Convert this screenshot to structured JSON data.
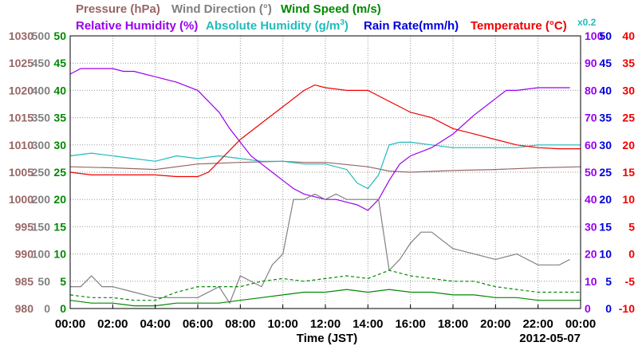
{
  "chart_data": {
    "type": "line",
    "date": "2012-05-07",
    "xlabel": "Time (JST)",
    "x_ticks": [
      "00:00",
      "02:00",
      "04:00",
      "06:00",
      "08:00",
      "10:00",
      "12:00",
      "14:00",
      "16:00",
      "18:00",
      "20:00",
      "22:00",
      "00:00"
    ],
    "xlim_hours": [
      0,
      24
    ],
    "grid": true,
    "legend_placement": "top",
    "rain_scale_note": "x0.2",
    "axes": {
      "pressure": {
        "label": "Pressure (hPa)",
        "ticks": [
          "980",
          "985",
          "990",
          "995",
          "1000",
          "1005",
          "1010",
          "1015",
          "1020",
          "1025",
          "1030"
        ],
        "range": [
          980,
          1030
        ],
        "color": "#996666"
      },
      "wind_direction": {
        "label": "Wind Direction (°)",
        "ticks": [
          "0",
          "50",
          "100",
          "150",
          "200",
          "250",
          "300",
          "350",
          "400",
          "450",
          "500"
        ],
        "range": [
          0,
          500
        ],
        "color": "#808080"
      },
      "wind_speed": {
        "label": "Wind Speed (m/s)",
        "ticks": [
          "0",
          "5",
          "10",
          "15",
          "20",
          "25",
          "30",
          "35",
          "40",
          "45",
          "50"
        ],
        "range": [
          0,
          50
        ],
        "color": "#008800"
      },
      "relative_humidity": {
        "label": "Relative Humidity (%)",
        "ticks": [
          "0",
          "10",
          "20",
          "30",
          "40",
          "50",
          "60",
          "70",
          "80",
          "90",
          "100"
        ],
        "range": [
          0,
          100
        ],
        "color": "#9900ee"
      },
      "rain_rate": {
        "label": "Rain Rate(mm/h)",
        "ticks": [
          "0",
          "5",
          "10",
          "15",
          "20",
          "25",
          "30",
          "35",
          "40",
          "45",
          "50"
        ],
        "range": [
          0,
          50
        ],
        "color": "#0000dd"
      },
      "temperature": {
        "label": "Temperature (°C)",
        "ticks": [
          "-10",
          "-5",
          "0",
          "5",
          "10",
          "15",
          "20",
          "25",
          "30",
          "35",
          "40"
        ],
        "range": [
          -10,
          40
        ],
        "color": "#ee0000"
      },
      "absolute_humidity": {
        "label": "Absolute Humidity (g/m",
        "label_sup": "3",
        "label_end": ")",
        "color": "#22bbbb"
      }
    },
    "series": [
      {
        "name": "Pressure (hPa)",
        "axis": "pressure",
        "color": "#996666",
        "x": [
          0,
          2,
          4,
          6,
          8,
          10,
          11,
          12,
          14,
          15,
          16,
          18,
          20,
          22,
          24
        ],
        "y": [
          1006,
          1005.8,
          1005.5,
          1006.5,
          1006.8,
          1007,
          1006.8,
          1006.8,
          1006,
          1005.2,
          1005,
          1005.3,
          1005.5,
          1005.8,
          1006
        ]
      },
      {
        "name": "Absolute Humidity",
        "axis": "relative_humidity",
        "color": "#22bbbb",
        "x": [
          0,
          1,
          2,
          3,
          4,
          5,
          6,
          7,
          8,
          9,
          10,
          11,
          12,
          13,
          13.5,
          14,
          14.5,
          15,
          15.5,
          16,
          17,
          18,
          19,
          20,
          21,
          22,
          23,
          24
        ],
        "y": [
          56,
          57,
          56,
          55,
          54,
          56,
          55,
          56,
          55,
          54,
          54,
          53,
          53,
          51,
          46,
          44,
          49,
          60,
          61,
          61,
          60,
          59,
          59,
          59,
          59,
          60,
          60,
          60
        ]
      },
      {
        "name": "Relative Humidity (%)",
        "axis": "relative_humidity",
        "color": "#9900ee",
        "x": [
          0,
          0.5,
          1,
          2,
          2.5,
          3,
          4,
          5,
          6,
          6.5,
          7,
          7.5,
          8,
          8.5,
          9,
          9.5,
          10,
          10.5,
          11,
          11.5,
          12,
          12.5,
          13,
          13.5,
          14,
          14.5,
          15,
          15.5,
          16,
          17,
          18,
          19,
          20,
          20.5,
          21,
          22,
          23,
          23.5
        ],
        "y": [
          86,
          88,
          88,
          88,
          87,
          87,
          85,
          83,
          80,
          76,
          72,
          66,
          61,
          56,
          53,
          50,
          47,
          44,
          42,
          41,
          40,
          40,
          39,
          38,
          36,
          40,
          47,
          53,
          56,
          59,
          64,
          71,
          77,
          80,
          80,
          81,
          81,
          81
        ]
      },
      {
        "name": "Temperature (°C)",
        "axis": "temperature",
        "color": "#ee0000",
        "x": [
          0,
          1,
          2,
          3,
          4,
          5,
          6,
          6.5,
          7,
          8,
          9,
          10,
          11,
          11.5,
          12,
          13,
          14,
          15,
          16,
          17,
          18,
          19,
          20,
          21,
          22,
          23,
          24
        ],
        "y": [
          15,
          14.5,
          14.5,
          14.5,
          14.5,
          14.2,
          14.2,
          15,
          17,
          21,
          24,
          27,
          30,
          31,
          30.5,
          30,
          30,
          28,
          26,
          25,
          23,
          22,
          21,
          20,
          19.5,
          19.3,
          19.3
        ]
      },
      {
        "name": "Wind Direction (°)",
        "axis": "wind_direction",
        "color": "#808080",
        "x": [
          0,
          0.5,
          1,
          1.5,
          2,
          3,
          4,
          5,
          6,
          7,
          7.5,
          8,
          9,
          9.5,
          10,
          10.5,
          11,
          11.5,
          12,
          12.5,
          13,
          13.5,
          14,
          14.5,
          15,
          15.5,
          16,
          16.5,
          17,
          18,
          19,
          20,
          21,
          22,
          23,
          23.5
        ],
        "y": [
          40,
          40,
          60,
          40,
          40,
          30,
          20,
          20,
          20,
          40,
          10,
          60,
          40,
          80,
          100,
          200,
          200,
          210,
          200,
          210,
          200,
          200,
          200,
          200,
          70,
          90,
          120,
          140,
          140,
          110,
          100,
          90,
          100,
          80,
          80,
          90
        ]
      },
      {
        "name": "Wind Speed (m/s)",
        "axis": "wind_speed",
        "color": "#008800",
        "x": [
          0,
          1,
          2,
          3,
          4,
          5,
          6,
          7,
          8,
          9,
          10,
          11,
          12,
          13,
          14,
          15,
          16,
          17,
          18,
          19,
          20,
          21,
          22,
          23,
          24
        ],
        "y": [
          1.5,
          1,
          1,
          0.5,
          0.5,
          1,
          1,
          1,
          1.5,
          2,
          2.5,
          3,
          3,
          3.5,
          3,
          3.5,
          3,
          3,
          2.5,
          2.5,
          2,
          2,
          1.5,
          1.5,
          1.5
        ]
      },
      {
        "name": "Wind Speed gust",
        "axis": "wind_speed",
        "color": "#008800",
        "dashed": true,
        "x": [
          0,
          1,
          2,
          3,
          4,
          5,
          6,
          7,
          8,
          9,
          10,
          11,
          12,
          13,
          14,
          15,
          16,
          17,
          18,
          19,
          20,
          21,
          22,
          23,
          24
        ],
        "y": [
          2.5,
          2,
          2,
          1.5,
          1.5,
          3,
          4,
          4,
          4,
          5,
          5.5,
          5,
          5.5,
          6,
          5.5,
          7,
          6,
          5.5,
          5,
          5,
          4,
          3.5,
          3,
          3,
          3
        ]
      }
    ]
  }
}
